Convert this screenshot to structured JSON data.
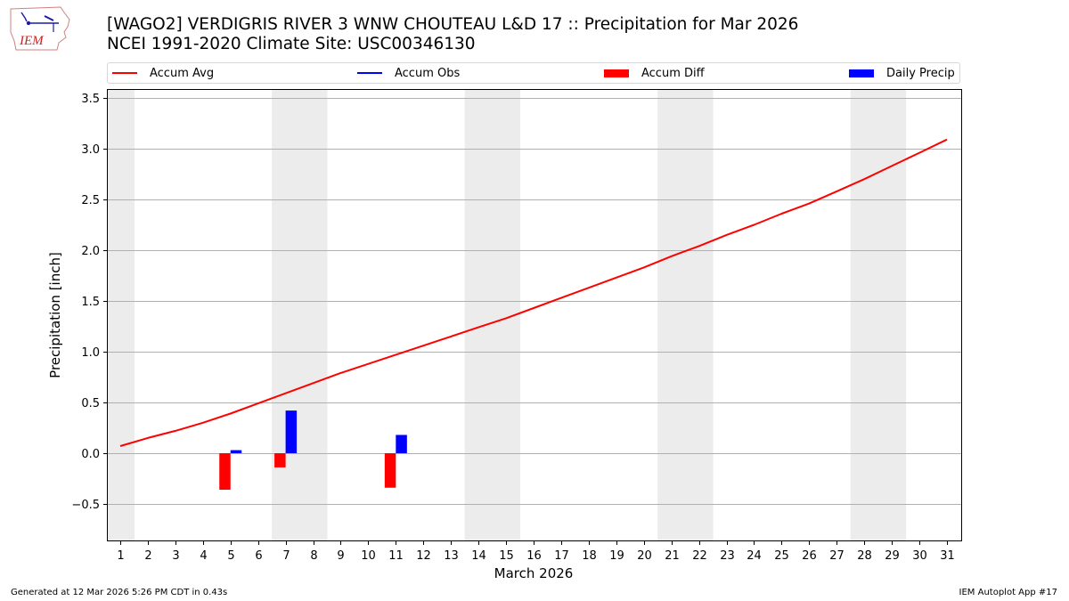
{
  "header": {
    "title_line1": "[WAGO2] VERDIGRIS RIVER 3 WNW CHOUTEAU L&D 17 :: Precipitation for Mar 2026",
    "title_line2": "NCEI 1991-2020 Climate Site: USC00346130",
    "logo_text": "IEM"
  },
  "legend": {
    "items": [
      {
        "label": "Accum Avg",
        "kind": "line",
        "color": "#ff0000"
      },
      {
        "label": "Accum Obs",
        "kind": "line",
        "color": "#0000ff"
      },
      {
        "label": "Accum Diff",
        "kind": "patch",
        "color": "#ff0000"
      },
      {
        "label": "Daily Precip",
        "kind": "patch",
        "color": "#0000ff"
      }
    ]
  },
  "footer": {
    "generated": "Generated at 12 Mar 2026 5:26 PM CDT in 0.43s",
    "app": "IEM Autoplot App #17"
  },
  "colors": {
    "avg": "#ff0000",
    "obs": "#0000ff",
    "diff": "#ff0000",
    "daily": "#0000ff",
    "weekend": "#ececec",
    "grid": "#b0b0b0"
  },
  "chart_data": {
    "type": "bar",
    "title": "[WAGO2] VERDIGRIS RIVER 3 WNW CHOUTEAU L&D 17 :: Precipitation for Mar 2026",
    "subtitle": "NCEI 1991-2020 Climate Site: USC00346130",
    "xlabel": "March 2026",
    "ylabel": "Precipitation [inch]",
    "ylim": [
      -0.87,
      3.59
    ],
    "yticks": [
      -0.5,
      0.0,
      0.5,
      1.0,
      1.5,
      2.0,
      2.5,
      3.0,
      3.5
    ],
    "ytick_labels": [
      "−0.5",
      "0.0",
      "0.5",
      "1.0",
      "1.5",
      "2.0",
      "2.5",
      "3.0",
      "3.5"
    ],
    "x": [
      1,
      2,
      3,
      4,
      5,
      6,
      7,
      8,
      9,
      10,
      11,
      12,
      13,
      14,
      15,
      16,
      17,
      18,
      19,
      20,
      21,
      22,
      23,
      24,
      25,
      26,
      27,
      28,
      29,
      30,
      31
    ],
    "grid": "horizontal",
    "legend_position": "top",
    "weekend_shading_days": [
      1,
      7,
      8,
      14,
      15,
      21,
      22,
      28,
      29
    ],
    "series": [
      {
        "name": "Accum Avg",
        "type": "line",
        "values": [
          0.07,
          0.15,
          0.22,
          0.3,
          0.39,
          0.49,
          0.59,
          0.69,
          0.79,
          0.88,
          0.97,
          1.06,
          1.15,
          1.24,
          1.33,
          1.43,
          1.53,
          1.63,
          1.73,
          1.83,
          1.94,
          2.04,
          2.15,
          2.25,
          2.36,
          2.46,
          2.58,
          2.7,
          2.83,
          2.96,
          3.09
        ]
      },
      {
        "name": "Accum Obs",
        "type": "line",
        "values": []
      },
      {
        "name": "Accum Diff",
        "type": "bar",
        "values": {
          "5": -0.36,
          "7": -0.14,
          "11": -0.34
        }
      },
      {
        "name": "Daily Precip",
        "type": "bar",
        "values": {
          "5": 0.03,
          "7": 0.42,
          "11": 0.18
        }
      }
    ]
  }
}
